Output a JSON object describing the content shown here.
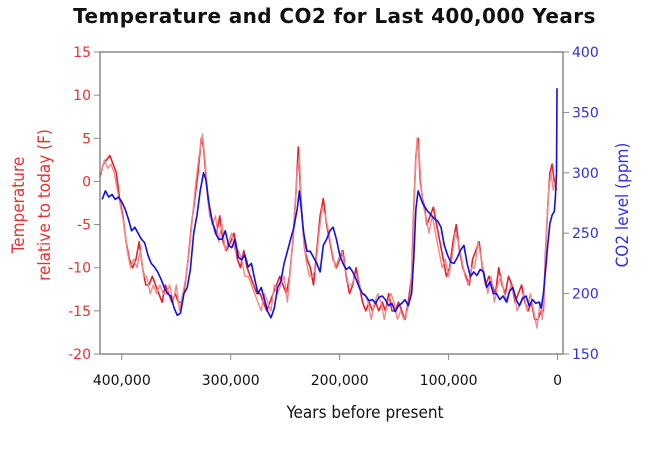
{
  "chart_data": {
    "type": "line",
    "title": "Temperature and CO2 for Last 400,000 Years",
    "xlabel": "Years before present",
    "ylabel_left": [
      "Temperature",
      "relative to today (F)"
    ],
    "ylabel_right": "CO2 level (ppm)",
    "x_ticks": [
      "400,000",
      "300,000",
      "200,000",
      "100,000",
      "0"
    ],
    "x_tick_values": [
      400000,
      300000,
      200000,
      100000,
      0
    ],
    "xlim": [
      420000,
      -5000
    ],
    "y_left_ticks": [
      "15",
      "10",
      "5",
      "0",
      "-5",
      "-10",
      "-15",
      "-20"
    ],
    "y_left_lim": [
      -20,
      15
    ],
    "y_right_ticks": [
      "400",
      "350",
      "300",
      "250",
      "200",
      "150"
    ],
    "y_right_lim": [
      150,
      400
    ],
    "grid": false,
    "colors": {
      "temperature": "#e8202a",
      "temperature_light": "#f08a8a",
      "co2": "#1010e0",
      "left_axis": "#e83030",
      "right_axis": "#3030e0"
    },
    "series": [
      {
        "axis": "left",
        "x": [
          420000,
          417000,
          414000,
          411000,
          408000,
          405000,
          402000,
          399000,
          396000,
          393000,
          390000,
          387000,
          384000,
          381000,
          378000,
          375000,
          372000,
          369000,
          366000,
          363000,
          360000,
          357000,
          354000,
          351000,
          348000,
          345000,
          342000,
          339000,
          336000,
          333000,
          330000,
          327000,
          325000,
          323000,
          321000,
          319000,
          316000,
          313000,
          310000,
          307000,
          304000,
          300000,
          297000,
          294000,
          291000,
          288000,
          285000,
          282000,
          279000,
          276000,
          273000,
          270000,
          267000,
          264000,
          261000,
          258000,
          255000,
          252000,
          249000,
          246000,
          243000,
          240000,
          238000,
          236000,
          234000,
          232000,
          230000,
          227000,
          224000,
          221000,
          218000,
          215000,
          212000,
          209000,
          206000,
          203000,
          200000,
          197000,
          194000,
          191000,
          188000,
          185000,
          182000,
          179000,
          176000,
          173000,
          170000,
          167000,
          164000,
          161000,
          158000,
          155000,
          152000,
          149000,
          146000,
          143000,
          140000,
          137000,
          134000,
          132000,
          130000,
          128000,
          126000,
          124000,
          122000,
          120000,
          117000,
          114000,
          111000,
          108000,
          105000,
          102000,
          99000,
          96000,
          93000,
          90000,
          87000,
          84000,
          81000,
          78000,
          75000,
          72000,
          69000,
          66000,
          63000,
          60000,
          57000,
          54000,
          51000,
          48000,
          45000,
          42000,
          39000,
          36000,
          33000,
          30000,
          27000,
          24000,
          21000,
          18000,
          15000,
          13000,
          11000,
          9000,
          7000,
          5000,
          3000,
          1000
        ],
        "y": [
          0.5,
          2,
          2.5,
          3,
          2,
          1,
          -2,
          -4,
          -7,
          -9,
          -10,
          -9,
          -7,
          -10,
          -12,
          -12,
          -11,
          -12,
          -13,
          -14,
          -12,
          -13,
          -14,
          -13,
          -14,
          -14,
          -12,
          -9,
          -5,
          -2,
          1,
          5,
          4,
          1,
          -2,
          -4,
          -5,
          -6,
          -4,
          -7,
          -8,
          -7,
          -6,
          -9,
          -10,
          -8,
          -10,
          -11,
          -12,
          -13,
          -13,
          -14,
          -15,
          -14,
          -13,
          -12,
          -11,
          -12,
          -13,
          -11,
          -7,
          -1,
          4,
          -1,
          -5,
          -8,
          -9,
          -10,
          -12,
          -8,
          -4,
          -2,
          -5,
          -7,
          -9,
          -10,
          -9,
          -8,
          -11,
          -13,
          -12,
          -10,
          -12,
          -14,
          -15,
          -14,
          -15,
          -14,
          -15,
          -14,
          -15,
          -13,
          -15,
          -15,
          -14,
          -15,
          -16,
          -14,
          -11,
          -3,
          3,
          5,
          0,
          -2,
          -3,
          -5,
          -4,
          -3,
          -5,
          -7,
          -9,
          -11,
          -10,
          -7,
          -5,
          -8,
          -10,
          -11,
          -12,
          -9,
          -8,
          -7,
          -10,
          -12,
          -11,
          -12,
          -13,
          -10,
          -12,
          -13,
          -11,
          -12,
          -14,
          -13,
          -12,
          -14,
          -15,
          -14,
          -16,
          -16,
          -15,
          -15,
          -8,
          -3,
          1,
          2,
          0,
          -1
        ]
      },
      {
        "axis": "left",
        "x": [
          419000,
          416000,
          413000,
          410000,
          407000,
          404000,
          401000,
          398000,
          395000,
          392000,
          389000,
          386000,
          383000,
          380000,
          377000,
          374000,
          371000,
          368000,
          365000,
          362000,
          359000,
          356000,
          353000,
          350000,
          347000,
          344000,
          341000,
          338000,
          335000,
          332000,
          329000,
          326000,
          324000,
          322000,
          320000,
          317000,
          314000,
          311000,
          308000,
          305000,
          302000,
          299000,
          296000,
          293000,
          290000,
          287000,
          284000,
          281000,
          278000,
          275000,
          272000,
          269000,
          266000,
          263000,
          260000,
          257000,
          254000,
          251000,
          248000,
          245000,
          242000,
          239000,
          237000,
          235000,
          233000,
          231000,
          228000,
          225000,
          222000,
          219000,
          216000,
          213000,
          210000,
          207000,
          204000,
          201000,
          198000,
          195000,
          192000,
          189000,
          186000,
          183000,
          180000,
          177000,
          174000,
          171000,
          168000,
          165000,
          162000,
          159000,
          156000,
          153000,
          150000,
          147000,
          144000,
          141000,
          138000,
          135000,
          133000,
          131000,
          129000,
          127000,
          125000,
          123000,
          121000,
          118000,
          115000,
          112000,
          109000,
          106000,
          103000,
          100000,
          97000,
          94000,
          91000,
          88000,
          85000,
          82000,
          79000,
          76000,
          73000,
          70000,
          67000,
          64000,
          61000,
          58000,
          55000,
          52000,
          49000,
          46000,
          43000,
          40000,
          37000,
          34000,
          31000,
          28000,
          25000,
          22000,
          19000,
          16000,
          14000,
          12000,
          10000,
          8000,
          6000,
          4000,
          2000
        ],
        "y": [
          1,
          2.5,
          1.5,
          2,
          1,
          -1,
          -3,
          -5,
          -8,
          -10,
          -9,
          -10,
          -8,
          -11,
          -11,
          -13,
          -12,
          -13,
          -12,
          -13,
          -13,
          -12,
          -14,
          -12,
          -15,
          -13,
          -11,
          -8,
          -4,
          0,
          3,
          5.5,
          3,
          0,
          -3,
          -5,
          -4,
          -7,
          -5,
          -8,
          -7,
          -6,
          -8,
          -8,
          -9,
          -11,
          -11,
          -12,
          -13,
          -14,
          -15,
          -13,
          -14,
          -15,
          -12,
          -13,
          -12,
          -11,
          -14,
          -10,
          -5,
          1,
          3,
          -3,
          -7,
          -9,
          -11,
          -11,
          -10,
          -6,
          -3,
          -4,
          -6,
          -8,
          -10,
          -9,
          -8,
          -10,
          -12,
          -12,
          -11,
          -11,
          -13,
          -13,
          -14,
          -16,
          -14,
          -13,
          -14,
          -16,
          -14,
          -13,
          -14,
          -16,
          -15,
          -16,
          -15,
          -13,
          -8,
          0,
          5,
          3,
          -1,
          -3,
          -4,
          -6,
          -4,
          -6,
          -8,
          -10,
          -9,
          -11,
          -9,
          -6,
          -7,
          -9,
          -11,
          -12,
          -10,
          -10,
          -7,
          -9,
          -11,
          -13,
          -11,
          -14,
          -12,
          -11,
          -13,
          -14,
          -12,
          -13,
          -15,
          -14,
          -13,
          -15,
          -13,
          -15,
          -17,
          -14,
          -16,
          -12,
          -5,
          -1,
          1,
          -1,
          0
        ]
      },
      {
        "axis": "right",
        "x": [
          418000,
          415000,
          412000,
          409000,
          406000,
          403000,
          400000,
          397000,
          394000,
          391000,
          388000,
          385000,
          382000,
          379000,
          376000,
          373000,
          370000,
          367000,
          364000,
          361000,
          358000,
          355000,
          352000,
          349000,
          346000,
          343000,
          340000,
          337000,
          334000,
          331000,
          328000,
          325000,
          323000,
          320000,
          317000,
          314000,
          311000,
          308000,
          305000,
          302000,
          299000,
          296000,
          293000,
          290000,
          287000,
          284000,
          281000,
          278000,
          275000,
          272000,
          269000,
          266000,
          263000,
          260000,
          257000,
          254000,
          251000,
          248000,
          245000,
          242000,
          239000,
          237000,
          235000,
          233000,
          230000,
          227000,
          224000,
          221000,
          218000,
          215000,
          212000,
          209000,
          206000,
          203000,
          200000,
          197000,
          194000,
          191000,
          188000,
          185000,
          182000,
          179000,
          176000,
          173000,
          170000,
          167000,
          164000,
          161000,
          158000,
          155000,
          152000,
          149000,
          146000,
          143000,
          140000,
          137000,
          134000,
          132000,
          130000,
          128000,
          126000,
          124000,
          122000,
          119000,
          116000,
          113000,
          110000,
          107000,
          104000,
          101000,
          98000,
          95000,
          92000,
          89000,
          86000,
          83000,
          80000,
          77000,
          74000,
          71000,
          68000,
          65000,
          62000,
          59000,
          56000,
          53000,
          50000,
          47000,
          44000,
          41000,
          38000,
          35000,
          32000,
          29000,
          26000,
          23000,
          20000,
          17000,
          15000,
          13000,
          11000,
          9000,
          7000,
          5000,
          3000,
          2000,
          1000,
          500
        ],
        "y": [
          278,
          285,
          280,
          282,
          278,
          280,
          276,
          270,
          262,
          252,
          255,
          250,
          245,
          242,
          232,
          225,
          222,
          218,
          212,
          205,
          200,
          198,
          188,
          182,
          184,
          200,
          205,
          220,
          250,
          265,
          285,
          300,
          295,
          275,
          260,
          250,
          245,
          245,
          252,
          240,
          238,
          245,
          230,
          228,
          232,
          222,
          225,
          212,
          200,
          205,
          195,
          185,
          180,
          188,
          205,
          210,
          225,
          235,
          245,
          255,
          270,
          285,
          268,
          250,
          235,
          235,
          230,
          225,
          218,
          240,
          245,
          252,
          255,
          245,
          232,
          225,
          220,
          222,
          218,
          212,
          205,
          200,
          198,
          194,
          195,
          192,
          197,
          198,
          195,
          190,
          192,
          185,
          190,
          192,
          195,
          190,
          200,
          230,
          270,
          285,
          280,
          275,
          272,
          268,
          265,
          262,
          260,
          255,
          240,
          232,
          226,
          225,
          230,
          236,
          240,
          225,
          214,
          218,
          215,
          220,
          218,
          205,
          210,
          200,
          200,
          195,
          198,
          193,
          202,
          205,
          195,
          190,
          196,
          198,
          190,
          195,
          192,
          193,
          188,
          200,
          220,
          240,
          258,
          265,
          268,
          280,
          300,
          370
        ]
      }
    ]
  }
}
